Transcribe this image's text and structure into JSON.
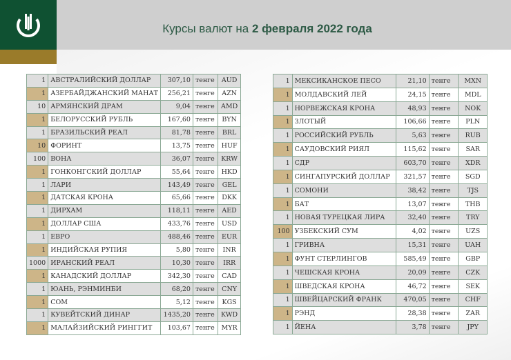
{
  "title": {
    "prefix": "Курсы валют на ",
    "bold": "2 февраля 2022 года"
  },
  "unit": "тенге",
  "colors": {
    "header_green": "#0f5132",
    "gold": "#9a7b2a",
    "row_gray": "#dedede",
    "tan": "#cdb588"
  },
  "left": [
    [
      "1",
      "АВСТРАЛИЙСКИЙ ДОЛЛАР",
      "307,10",
      "AUD"
    ],
    [
      "1",
      "АЗЕРБАЙДЖАНСКИЙ МАНАТ",
      "256,21",
      "AZN"
    ],
    [
      "10",
      "АРМЯНСКИЙ  ДРАМ",
      "9,04",
      "AMD"
    ],
    [
      "1",
      "БЕЛОРУССКИЙ РУБЛЬ",
      "167,60",
      "BYN"
    ],
    [
      "1",
      "БРАЗИЛЬСКИЙ РЕАЛ",
      "81,78",
      "BRL"
    ],
    [
      "10",
      "ФОРИНТ",
      "13,75",
      "HUF"
    ],
    [
      "100",
      "ВОНА",
      "36,07",
      "KRW"
    ],
    [
      "1",
      "ГОНКОНГСКИЙ ДОЛЛАР",
      "55,64",
      "HKD"
    ],
    [
      "1",
      "ЛАРИ",
      "143,49",
      "GEL"
    ],
    [
      "1",
      "ДАТСКАЯ КРОНА",
      "65,66",
      "DKK"
    ],
    [
      "1",
      "ДИРХАМ",
      "118,11",
      "AED"
    ],
    [
      "1",
      "ДОЛЛАР США",
      "433,76",
      "USD"
    ],
    [
      "1",
      "ЕВРО",
      "488,46",
      "EUR"
    ],
    [
      "1",
      "ИНДИЙСКАЯ РУПИЯ",
      "5,80",
      "INR"
    ],
    [
      "1000",
      "ИРАНСКИЙ РЕАЛ",
      "10,30",
      "IRR"
    ],
    [
      "1",
      "КАНАДСКИЙ ДОЛЛАР",
      "342,30",
      "CAD"
    ],
    [
      "1",
      "ЮАНЬ, РЭНМИНБИ",
      "68,20",
      "CNY"
    ],
    [
      "1",
      "СОМ",
      "5,12",
      "KGS"
    ],
    [
      "1",
      "КУВЕЙТСКИЙ ДИНАР",
      "1435,20",
      "KWD"
    ],
    [
      "1",
      "МАЛАЙЗИЙСКИЙ РИНГГИТ",
      "103,67",
      "MYR"
    ]
  ],
  "right": [
    [
      "1",
      "МЕКСИКАНСКОЕ ПЕСО",
      "21,10",
      "MXN"
    ],
    [
      "1",
      "МОЛДАВСКИЙ ЛЕЙ",
      "24,15",
      "MDL"
    ],
    [
      "1",
      "НОРВЕЖСКАЯ КРОНА",
      "48,93",
      "NOK"
    ],
    [
      "1",
      "ЗЛОТЫЙ",
      "106,66",
      "PLN"
    ],
    [
      "1",
      "РОССИЙСКИЙ РУБЛЬ",
      "5,63",
      "RUB"
    ],
    [
      "1",
      "САУДОВСКИЙ РИЯЛ",
      "115,62",
      "SAR"
    ],
    [
      "1",
      "СДР",
      "603,70",
      "XDR"
    ],
    [
      "1",
      "СИНГАПУРСКИЙ ДОЛЛАР",
      "321,57",
      "SGD"
    ],
    [
      "1",
      "СОМОНИ",
      "38,42",
      "TJS"
    ],
    [
      "1",
      "БАТ",
      "13,07",
      "THB"
    ],
    [
      "1",
      "НОВАЯ ТУРЕЦКАЯ ЛИРА",
      "32,40",
      "TRY"
    ],
    [
      "100",
      "УЗБЕКСКИЙ СУМ",
      "4,02",
      "UZS"
    ],
    [
      "1",
      "ГРИВНА",
      "15,31",
      "UAH"
    ],
    [
      "1",
      "ФУНТ СТЕРЛИНГОВ",
      "585,49",
      "GBP"
    ],
    [
      "1",
      "ЧЕШСКАЯ КРОНА",
      "20,09",
      "CZK"
    ],
    [
      "1",
      "ШВЕДСКАЯ КРОНА",
      "46,72",
      "SEK"
    ],
    [
      "1",
      "ШВЕЙЦАРСКИЙ ФРАНК",
      "470,05",
      "CHF"
    ],
    [
      "1",
      "РЭНД",
      "28,38",
      "ZAR"
    ],
    [
      "1",
      "ЙЕНА",
      "3,78",
      "JPY"
    ]
  ]
}
